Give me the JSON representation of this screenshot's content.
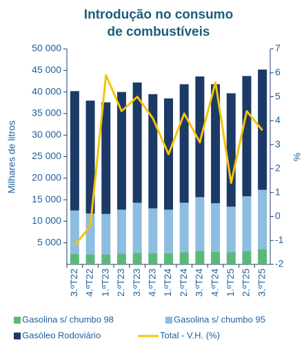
{
  "chart_data": {
    "type": "bar",
    "title": [
      "Introdução no consumo",
      "de combustíveis"
    ],
    "y_label": "Milhares de litros",
    "y2_label": "%",
    "categories": [
      "3.ºT22",
      "4.ºT22",
      "1.ºT23",
      "2.ºT23",
      "3.ºT23",
      "4.ºT23",
      "1.ºT24",
      "2.ºT24",
      "3.ºT24",
      "4.ºT24",
      "1.ºT25",
      "2.ºT25",
      "3.ºT25"
    ],
    "series": [
      {
        "name": "Gasolina s/ chumbo 98",
        "color": "#5cb87a",
        "type": "bar",
        "values": [
          2400,
          2300,
          2300,
          2500,
          2700,
          2600,
          2600,
          2800,
          3100,
          2900,
          2800,
          3100,
          3500
        ]
      },
      {
        "name": "Gasolina s/ chumbo 95",
        "color": "#8dbde0",
        "type": "bar",
        "values": [
          10100,
          9500,
          9400,
          10200,
          11600,
          10400,
          10100,
          11500,
          12500,
          11300,
          10600,
          12700,
          13800
        ]
      },
      {
        "name": "Gasóleo Rodoviário",
        "color": "#1c3a66",
        "type": "bar",
        "values": [
          27700,
          26200,
          25900,
          27300,
          27900,
          26500,
          25800,
          27500,
          28000,
          27600,
          26300,
          27900,
          27900
        ]
      },
      {
        "name": "Total - V.H. (%)",
        "color": "#f5c400",
        "type": "line",
        "axis": "y2",
        "values": [
          -1.2,
          -0.4,
          5.9,
          4.4,
          5.0,
          4.1,
          2.6,
          4.3,
          3.1,
          5.6,
          1.4,
          4.4,
          3.6
        ]
      }
    ],
    "stacked": true,
    "ylim": [
      0,
      50000
    ],
    "yticks": [
      {
        "value": 5000,
        "label": "5 000"
      },
      {
        "value": 10000,
        "label": "10 000"
      },
      {
        "value": 15000,
        "label": "15 000"
      },
      {
        "value": 20000,
        "label": "20 000"
      },
      {
        "value": 25000,
        "label": "25 000"
      },
      {
        "value": 30000,
        "label": "30 000"
      },
      {
        "value": 35000,
        "label": "35 000"
      },
      {
        "value": 40000,
        "label": "40 000"
      },
      {
        "value": 45000,
        "label": "45 000"
      },
      {
        "value": 50000,
        "label": "50 000"
      }
    ],
    "y2lim": [
      -2,
      7
    ],
    "y2ticks": [
      -2,
      -1,
      0,
      1,
      2,
      3,
      4,
      5,
      6,
      7
    ],
    "grid": false
  }
}
